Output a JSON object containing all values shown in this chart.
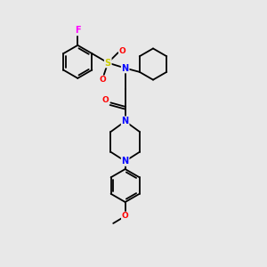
{
  "background_color": "#e8e8e8",
  "bond_color": "#000000",
  "atom_colors": {
    "F": "#ff00ff",
    "S": "#cccc00",
    "O": "#ff0000",
    "N": "#0000ff",
    "C": "#000000"
  },
  "figsize": [
    3.0,
    3.0
  ],
  "dpi": 100,
  "lw": 1.3,
  "ring_r": 0.62,
  "font_size": 7.0
}
